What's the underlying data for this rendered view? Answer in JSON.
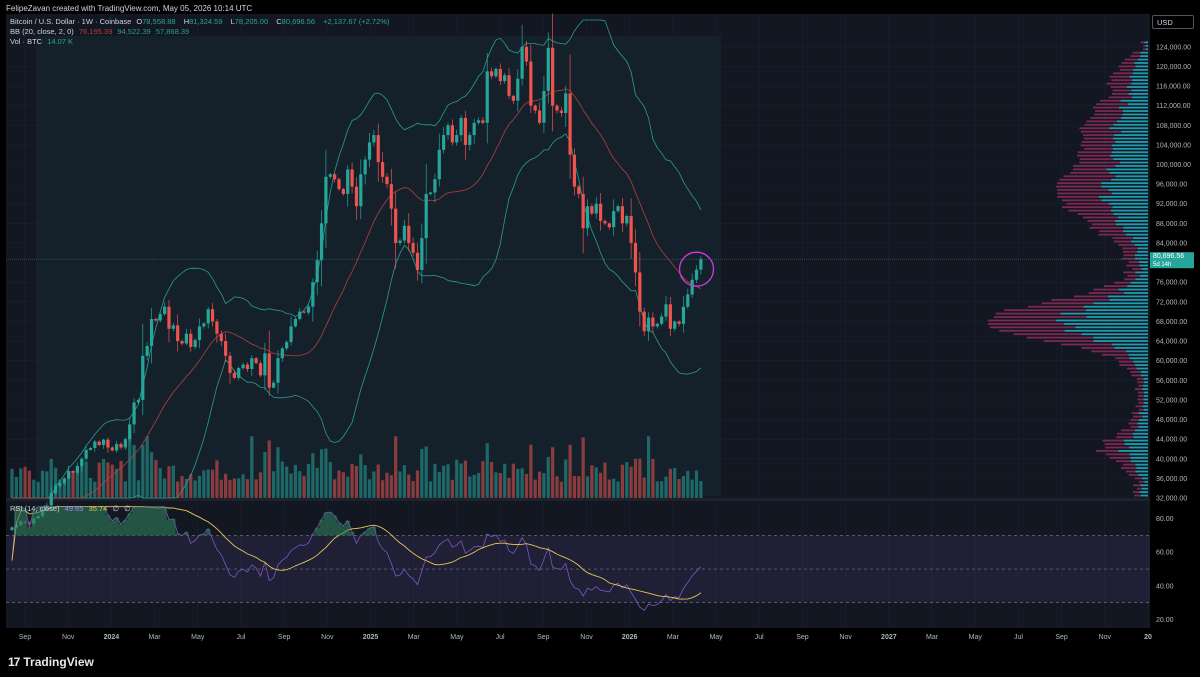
{
  "header": {
    "created_by": "FelipeZavan created with TradingView.com, May 05, 2026 10:14 UTC"
  },
  "symbol": {
    "title": "Bitcoin / U.S. Dollar · 1W · Coinbase",
    "open_label": "O",
    "open": "78,558.88",
    "high_label": "H",
    "high": "81,324.59",
    "low_label": "L",
    "low": "78,205.00",
    "close_label": "C",
    "close": "80,696.56",
    "change": "+2,137.67 (+2.72%)"
  },
  "indicators": {
    "bb_label": "BB (20, close, 2, 0)",
    "bb_basis": "76,195.39",
    "bb_upper": "94,522.39",
    "bb_lower": "57,868.39",
    "vol_label": "Vol · BTC",
    "vol_value": "14.07 K",
    "rsi_label": "RSI (14, close)",
    "rsi_value": "49.65",
    "rsi_ma": "35.74",
    "rsi_extra1": "∅",
    "rsi_extra2": "∅"
  },
  "currency_label": "USD",
  "last_price": "80,696.56",
  "countdown": "5d 14h",
  "brand": {
    "logo_mark": "17",
    "name": "TradingView"
  },
  "colors": {
    "up": "#26a69a",
    "down": "#ef5350",
    "volume_up": "#26a69a",
    "volume_down": "#ef5350",
    "bb_band": "#2a9d8f",
    "bb_basis": "#b04040",
    "rsi_line": "#7e57c2",
    "rsi_ma": "#e6c84f",
    "vp_up": "#1fb6c9",
    "vp_down": "#8e2b5b",
    "highlight_circle": "#d33be0"
  },
  "chart_data": {
    "type": "candlestick",
    "timeframe": "1W",
    "price_axis_ticks": [
      "124,000.00",
      "120,000.00",
      "116,000.00",
      "112,000.00",
      "108,000.00",
      "104,000.00",
      "100,000.00",
      "96,000.00",
      "92,000.00",
      "88,000.00",
      "84,000.00",
      "76,000.00",
      "72,000.00",
      "68,000.00",
      "64,000.00",
      "60,000.00",
      "56,000.00",
      "52,000.00",
      "48,000.00",
      "44,000.00",
      "40,000.00",
      "36,000.00",
      "32,000.00"
    ],
    "price_tick_values": [
      124000,
      120000,
      116000,
      112000,
      108000,
      104000,
      100000,
      96000,
      92000,
      88000,
      84000,
      76000,
      72000,
      68000,
      64000,
      60000,
      56000,
      52000,
      48000,
      44000,
      40000,
      36000,
      32000
    ],
    "price_range": [
      32000,
      126000
    ],
    "time_axis_labels": [
      "Sep",
      "Nov",
      "2024",
      "Mar",
      "May",
      "Jul",
      "Sep",
      "Nov",
      "2025",
      "Mar",
      "May",
      "Jul",
      "Sep",
      "Nov",
      "2026",
      "Mar",
      "May",
      "Jul",
      "Sep",
      "Nov",
      "2027",
      "Mar",
      "May",
      "Jul",
      "Sep",
      "Nov",
      "20"
    ],
    "time_axis_bold": [
      "2024",
      "2025",
      "2026",
      "2027",
      "20"
    ],
    "rsi_axis_ticks": [
      "80.00",
      "60.00",
      "40.00",
      "20.00"
    ],
    "rsi_tick_values": [
      80,
      60,
      40,
      20
    ],
    "rsi_range": [
      15,
      88
    ],
    "rsi_levels": {
      "upper": 70,
      "middle": 50,
      "lower": 30
    },
    "weekly_closes_approx": [
      26000,
      26500,
      27200,
      27000,
      26800,
      27800,
      28300,
      29500,
      30500,
      33000,
      34500,
      35000,
      36000,
      37500,
      37200,
      38500,
      40000,
      41800,
      42200,
      43500,
      42800,
      43900,
      42300,
      41700,
      43000,
      42300,
      44000,
      47000,
      51500,
      52000,
      61000,
      63000,
      68500,
      68200,
      69500,
      71000,
      66500,
      67200,
      64000,
      63500,
      65500,
      62800,
      64200,
      67000,
      67600,
      70500,
      68000,
      65500,
      64000,
      61000,
      57500,
      56500,
      58500,
      59200,
      58300,
      60500,
      59500,
      57000,
      61500,
      54500,
      55500,
      60500,
      62500,
      63800,
      67000,
      68500,
      70000,
      69800,
      71000,
      76000,
      80500,
      88000,
      97500,
      98000,
      97000,
      95000,
      94000,
      99000,
      95500,
      91500,
      98000,
      101000,
      104500,
      106000,
      100500,
      97500,
      96000,
      91000,
      84000,
      84500,
      87500,
      84000,
      82000,
      78500,
      85000,
      94000,
      94300,
      97000,
      103000,
      106000,
      108000,
      104500,
      106000,
      109500,
      104000,
      106000,
      108500,
      109000,
      108500,
      119000,
      118000,
      119500,
      117000,
      118200,
      114000,
      113000,
      117500,
      124000,
      121000,
      112000,
      111000,
      108500,
      115000,
      123800,
      112000,
      111000,
      110500,
      114500,
      102000,
      95500,
      94000,
      87000,
      91500,
      90000,
      92000,
      88500,
      88000,
      87200,
      90500,
      91500,
      88000,
      89500,
      84000,
      78000,
      70000,
      66000,
      68800,
      67000,
      67500,
      69000,
      71500,
      66500,
      68000,
      67500,
      71000,
      73500,
      76500,
      78560,
      80696.56
    ],
    "bb_upper_approx_start_end": [
      31000,
      95000
    ],
    "rsi_last": 49.65,
    "rsi_ma_last": 35.74,
    "volume_profile": "horizontal histogram on right side, up (cyan) and down (magenta) volume by price level, largest node near 68,000"
  }
}
